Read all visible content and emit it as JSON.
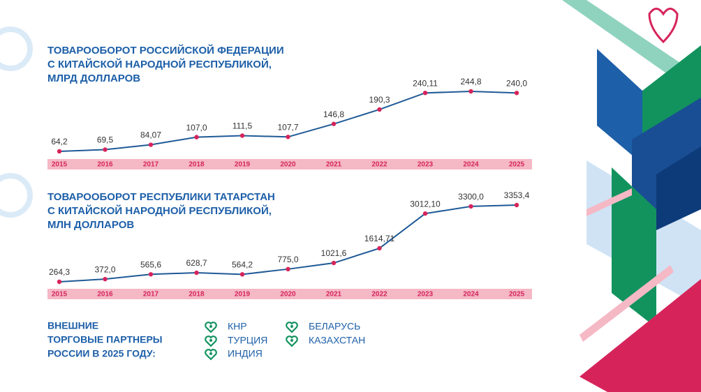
{
  "chart_data": [
    {
      "type": "line",
      "title": [
        "ТОВАРООБОРОТ РОССИЙСКОЙ ФЕДЕРАЦИИ",
        "С КИТАЙСКОЙ НАРОДНОЙ РЕСПУБЛИКОЙ,",
        "МЛРД ДОЛЛАРОВ"
      ],
      "categories": [
        "2015",
        "2016",
        "2017",
        "2018",
        "2019",
        "2020",
        "2021",
        "2022",
        "2023",
        "2024",
        "2025"
      ],
      "values": [
        64.2,
        69.5,
        84.07,
        107.0,
        111.5,
        107.7,
        146.8,
        190.3,
        240.11,
        244.8,
        240.0
      ],
      "value_labels": [
        "64,2",
        "69,5",
        "84,07",
        "107,0",
        "111,5",
        "107,7",
        "146,8",
        "190,3",
        "240,11",
        "244,8",
        "240,0"
      ],
      "color": "#1f5a96",
      "marker_color": "#d6245b"
    },
    {
      "type": "line",
      "title": [
        "ТОВАРООБОРОТ РЕСПУБЛИКИ ТАТАРСТАН",
        "С КИТАЙСКОЙ НАРОДНОЙ РЕСПУБЛИКОЙ,",
        "МЛН ДОЛЛАРОВ"
      ],
      "categories": [
        "2015",
        "2016",
        "2017",
        "2018",
        "2019",
        "2020",
        "2021",
        "2022",
        "2023",
        "2024",
        "2025"
      ],
      "values": [
        264.3,
        372.0,
        565.6,
        628.7,
        564.2,
        775.0,
        1021.6,
        1614.71,
        3012.1,
        3300.0,
        3353.4
      ],
      "value_labels": [
        "264,3",
        "372,0",
        "565,6",
        "628,7",
        "564,2",
        "775,0",
        "1021,6",
        "1614,71",
        "3012,10",
        "3300,0",
        "3353,4"
      ],
      "color": "#1f5a96",
      "marker_color": "#d6245b"
    }
  ],
  "partners": {
    "title": [
      "ВНЕШНИЕ",
      "ТОРГОВЫЕ ПАРТНЕРЫ",
      "РОССИИ В 2025 ГОДУ:"
    ],
    "items": [
      "КНР",
      "ТУРЦИЯ",
      "ИНДИЯ",
      "БЕЛАРУСЬ",
      "КАЗАХСТАН"
    ]
  }
}
